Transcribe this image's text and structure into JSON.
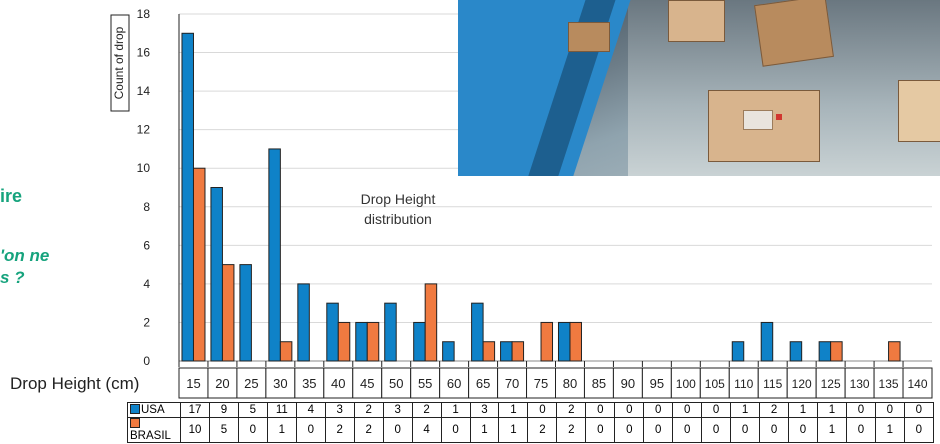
{
  "side_text": {
    "line1": "ire",
    "line2": "'on ne",
    "line3": "s ?"
  },
  "chart_data": {
    "type": "bar",
    "title": "Drop Height distribution",
    "xlabel": "Drop Height (cm)",
    "ylabel": "Count of drop",
    "ylim": [
      0,
      18
    ],
    "yticks": [
      0,
      2,
      4,
      6,
      8,
      10,
      12,
      14,
      16,
      18
    ],
    "grid": true,
    "categories": [
      "15",
      "20",
      "25",
      "30",
      "35",
      "40",
      "45",
      "50",
      "55",
      "60",
      "65",
      "70",
      "75",
      "80",
      "85",
      "90",
      "95",
      "100",
      "105",
      "110",
      "115",
      "120",
      "125",
      "130",
      "135",
      "140"
    ],
    "series": [
      {
        "name": "USA",
        "color": "#0f82c8",
        "values": [
          17,
          9,
          5,
          11,
          4,
          3,
          2,
          3,
          2,
          1,
          3,
          1,
          0,
          2,
          0,
          0,
          0,
          0,
          0,
          1,
          2,
          1,
          1,
          0,
          0,
          0
        ]
      },
      {
        "name": "BRASIL",
        "color": "#f07a40",
        "values": [
          10,
          5,
          0,
          1,
          0,
          2,
          2,
          0,
          4,
          0,
          1,
          1,
          2,
          2,
          0,
          0,
          0,
          0,
          0,
          0,
          0,
          0,
          1,
          0,
          1,
          0
        ]
      }
    ],
    "legend": "data table below chart"
  }
}
